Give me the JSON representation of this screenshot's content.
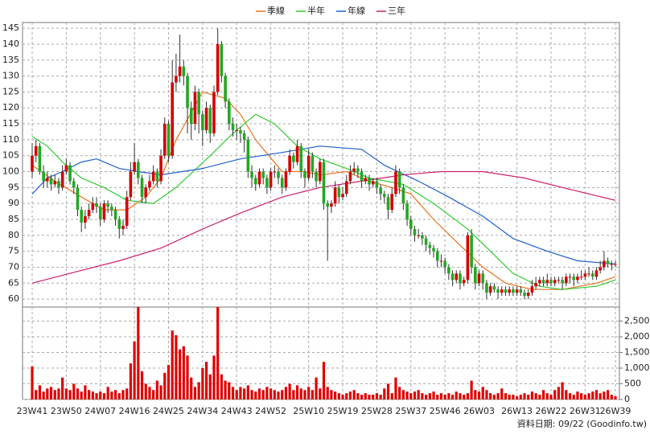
{
  "chart_data": {
    "type": "candlestick",
    "legend": "top",
    "grid": true,
    "footer": "資料日期: 09/22  (Goodinfo.tw)",
    "up_color": "#d40000",
    "down_color": "#22a822",
    "categories": [
      "23W41",
      null,
      null,
      null,
      null,
      null,
      null,
      null,
      null,
      "23W50",
      null,
      null,
      null,
      null,
      null,
      null,
      null,
      null,
      "24W07",
      null,
      null,
      null,
      null,
      null,
      null,
      null,
      null,
      "24W16",
      null,
      null,
      null,
      null,
      null,
      null,
      null,
      null,
      "24W25",
      null,
      null,
      null,
      null,
      null,
      null,
      null,
      null,
      "24W34",
      null,
      null,
      null,
      null,
      null,
      null,
      null,
      null,
      "24W43",
      null,
      null,
      null,
      null,
      null,
      null,
      null,
      null,
      "24W52",
      null,
      null,
      null,
      null,
      null,
      null,
      null,
      null,
      null,
      "25W10",
      null,
      null,
      null,
      null,
      null,
      null,
      null,
      null,
      "25W19",
      null,
      null,
      null,
      null,
      null,
      null,
      null,
      null,
      "25W28",
      null,
      null,
      null,
      null,
      null,
      null,
      null,
      null,
      "25W37",
      null,
      null,
      null,
      null,
      null,
      null,
      null,
      null,
      "25W46",
      null,
      null,
      null,
      null,
      null,
      null,
      null,
      null,
      "26W03",
      null,
      null,
      null,
      null,
      null,
      null,
      null,
      null,
      null,
      "26W13",
      null,
      null,
      null,
      null,
      null,
      null,
      null,
      null,
      "26W22",
      null,
      null,
      null,
      null,
      null,
      null,
      null,
      null,
      "26W31",
      null,
      null,
      null,
      null,
      null,
      null,
      null,
      "26W39"
    ],
    "ohlc": [
      [
        100,
        109,
        98,
        105
      ],
      [
        105,
        110,
        103,
        108
      ],
      [
        108,
        109,
        99,
        100
      ],
      [
        100,
        102,
        95,
        97
      ],
      [
        97,
        100,
        95,
        98
      ],
      [
        98,
        99,
        94,
        96
      ],
      [
        96,
        99,
        95,
        97
      ],
      [
        97,
        98,
        93,
        95
      ],
      [
        95,
        102,
        94,
        100
      ],
      [
        100,
        104,
        99,
        102
      ],
      [
        102,
        103,
        96,
        97
      ],
      [
        97,
        98,
        93,
        95
      ],
      [
        95,
        96,
        86,
        88
      ],
      [
        88,
        89,
        81,
        84
      ],
      [
        84,
        88,
        82,
        86
      ],
      [
        86,
        90,
        85,
        88
      ],
      [
        88,
        92,
        87,
        90
      ],
      [
        90,
        92,
        87,
        89
      ],
      [
        89,
        90,
        83,
        85
      ],
      [
        85,
        91,
        84,
        90
      ],
      [
        90,
        91,
        87,
        89
      ],
      [
        89,
        90,
        86,
        88
      ],
      [
        88,
        89,
        83,
        85
      ],
      [
        85,
        86,
        79,
        82
      ],
      [
        82,
        85,
        80,
        83
      ],
      [
        83,
        94,
        82,
        92
      ],
      [
        92,
        103,
        91,
        100
      ],
      [
        100,
        109,
        99,
        103
      ],
      [
        103,
        104,
        96,
        98
      ],
      [
        98,
        99,
        90,
        92
      ],
      [
        92,
        96,
        90,
        95
      ],
      [
        95,
        99,
        94,
        97
      ],
      [
        97,
        102,
        96,
        100
      ],
      [
        100,
        101,
        95,
        97
      ],
      [
        97,
        107,
        96,
        105
      ],
      [
        105,
        117,
        104,
        115
      ],
      [
        115,
        116,
        103,
        105
      ],
      [
        105,
        135,
        104,
        128
      ],
      [
        128,
        137,
        125,
        130
      ],
      [
        130,
        143,
        128,
        133
      ],
      [
        133,
        135,
        127,
        130
      ],
      [
        130,
        131,
        112,
        120
      ],
      [
        120,
        122,
        110,
        115
      ],
      [
        115,
        127,
        113,
        125
      ],
      [
        125,
        126,
        112,
        118
      ],
      [
        118,
        119,
        108,
        113
      ],
      [
        113,
        122,
        112,
        120
      ],
      [
        120,
        121,
        109,
        112
      ],
      [
        112,
        127,
        111,
        125
      ],
      [
        125,
        145,
        124,
        140
      ],
      [
        140,
        141,
        128,
        130
      ],
      [
        130,
        131,
        120,
        122
      ],
      [
        122,
        123,
        113,
        115
      ],
      [
        115,
        117,
        111,
        113
      ],
      [
        113,
        115,
        110,
        113
      ],
      [
        113,
        114,
        109,
        112
      ],
      [
        112,
        113,
        106,
        110
      ],
      [
        110,
        111,
        98,
        100
      ],
      [
        100,
        102,
        95,
        98
      ],
      [
        98,
        99,
        94,
        96
      ],
      [
        96,
        101,
        95,
        100
      ],
      [
        100,
        101,
        96,
        98
      ],
      [
        98,
        99,
        93,
        95
      ],
      [
        95,
        101,
        94,
        100
      ],
      [
        100,
        102,
        98,
        100
      ],
      [
        100,
        101,
        96,
        98
      ],
      [
        98,
        99,
        93,
        95
      ],
      [
        95,
        101,
        94,
        100
      ],
      [
        100,
        107,
        99,
        105
      ],
      [
        105,
        106,
        101,
        103
      ],
      [
        103,
        110,
        102,
        108
      ],
      [
        108,
        109,
        98,
        100
      ],
      [
        100,
        101,
        95,
        98
      ],
      [
        98,
        107,
        97,
        105
      ],
      [
        105,
        106,
        98,
        100
      ],
      [
        100,
        101,
        95,
        97
      ],
      [
        97,
        104,
        96,
        103
      ],
      [
        103,
        104,
        88,
        90
      ],
      [
        90,
        91,
        72,
        89
      ],
      [
        89,
        91,
        87,
        90
      ],
      [
        90,
        97,
        89,
        95
      ],
      [
        95,
        96,
        90,
        92
      ],
      [
        92,
        95,
        91,
        93
      ],
      [
        93,
        99,
        92,
        97
      ],
      [
        97,
        102,
        96,
        100
      ],
      [
        100,
        103,
        99,
        101
      ],
      [
        101,
        102,
        98,
        100
      ],
      [
        100,
        101,
        95,
        97
      ],
      [
        97,
        99,
        96,
        98
      ],
      [
        98,
        99,
        94,
        96
      ],
      [
        96,
        98,
        95,
        97
      ],
      [
        97,
        98,
        93,
        95
      ],
      [
        95,
        96,
        91,
        93
      ],
      [
        93,
        94,
        90,
        92
      ],
      [
        92,
        93,
        85,
        88
      ],
      [
        88,
        95,
        87,
        93
      ],
      [
        93,
        102,
        92,
        100
      ],
      [
        100,
        101,
        93,
        95
      ],
      [
        95,
        96,
        88,
        90
      ],
      [
        90,
        91,
        83,
        85
      ],
      [
        85,
        86,
        80,
        82
      ],
      [
        82,
        83,
        78,
        80
      ],
      [
        80,
        82,
        79,
        80
      ],
      [
        80,
        81,
        77,
        79
      ],
      [
        79,
        80,
        75,
        77
      ],
      [
        77,
        78,
        74,
        76
      ],
      [
        76,
        77,
        73,
        75
      ],
      [
        75,
        76,
        70,
        72
      ],
      [
        72,
        74,
        70,
        72
      ],
      [
        72,
        73,
        68,
        70
      ],
      [
        70,
        71,
        66,
        68
      ],
      [
        68,
        69,
        64,
        66
      ],
      [
        66,
        69,
        65,
        68
      ],
      [
        68,
        69,
        63,
        65
      ],
      [
        65,
        67,
        64,
        66
      ],
      [
        66,
        81,
        65,
        80
      ],
      [
        80,
        82,
        68,
        70
      ],
      [
        70,
        71,
        63,
        65
      ],
      [
        65,
        69,
        64,
        68
      ],
      [
        68,
        69,
        63,
        65
      ],
      [
        65,
        66,
        60,
        62
      ],
      [
        62,
        65,
        61,
        64
      ],
      [
        64,
        65,
        62,
        63
      ],
      [
        63,
        64,
        60,
        62
      ],
      [
        62,
        64,
        61,
        63
      ],
      [
        63,
        64,
        61,
        62
      ],
      [
        62,
        64,
        61,
        63
      ],
      [
        63,
        64,
        61,
        62
      ],
      [
        62,
        64,
        61,
        63
      ],
      [
        63,
        64,
        61,
        62
      ],
      [
        62,
        63,
        60,
        61
      ],
      [
        61,
        63,
        60,
        62
      ],
      [
        62,
        66,
        61,
        64
      ],
      [
        64,
        67,
        63,
        65
      ],
      [
        65,
        67,
        64,
        66
      ],
      [
        66,
        67,
        64,
        65
      ],
      [
        65,
        68,
        64,
        66
      ],
      [
        66,
        67,
        64,
        65
      ],
      [
        65,
        67,
        64,
        66
      ],
      [
        66,
        67,
        65,
        66
      ],
      [
        66,
        67,
        63,
        65
      ],
      [
        65,
        68,
        64,
        67
      ],
      [
        67,
        68,
        65,
        67
      ],
      [
        67,
        68,
        64,
        66
      ],
      [
        66,
        68,
        65,
        67
      ],
      [
        67,
        69,
        66,
        67
      ],
      [
        67,
        69,
        66,
        68
      ],
      [
        68,
        70,
        67,
        68
      ],
      [
        68,
        69,
        66,
        67
      ],
      [
        67,
        70,
        66,
        69
      ],
      [
        69,
        72,
        68,
        70
      ],
      [
        70,
        75,
        69,
        72
      ],
      [
        72,
        73,
        70,
        71
      ],
      [
        71,
        72,
        69,
        71
      ],
      [
        71,
        72,
        70,
        71
      ]
    ],
    "ylim": [
      57.5,
      146.8
    ],
    "yticks": [
      60,
      65,
      70,
      75,
      80,
      85,
      90,
      95,
      100,
      105,
      110,
      115,
      120,
      125,
      130,
      135,
      140,
      145
    ],
    "series": [
      {
        "name": "季線",
        "color": "#e8731c",
        "x": [
          0,
          6,
          13,
          19,
          25,
          30,
          34,
          38,
          45,
          51,
          55,
          59,
          66,
          72,
          76,
          83,
          89,
          95,
          100,
          106,
          112,
          119,
          125,
          132,
          140,
          149,
          154
        ],
        "values": [
          102,
          97,
          92,
          88,
          88,
          92,
          98,
          110,
          125,
          123,
          118,
          110,
          100,
          100,
          99,
          100,
          97,
          95,
          93,
          85,
          78,
          70,
          65,
          63,
          63,
          65,
          67
        ]
      },
      {
        "name": "半年",
        "color": "#2ecc2e",
        "x": [
          0,
          4,
          8,
          13,
          19,
          25,
          32,
          38,
          47,
          53,
          59,
          64,
          70,
          76,
          83,
          89,
          98,
          106,
          115,
          121,
          127,
          134,
          140,
          149,
          154
        ],
        "values": [
          111,
          108,
          103,
          98,
          95,
          91,
          90,
          95,
          105,
          112,
          118,
          115,
          108,
          104,
          101,
          98,
          96,
          90,
          82,
          75,
          68,
          64,
          63,
          64,
          66
        ]
      },
      {
        "name": "年線",
        "color": "#1f5fcf",
        "x": [
          0,
          4,
          8,
          13,
          17,
          23,
          28,
          34,
          45,
          55,
          66,
          76,
          87,
          93,
          102,
          110,
          119,
          127,
          136,
          144,
          154
        ],
        "values": [
          93,
          98,
          100,
          103,
          104,
          101,
          100,
          99,
          101,
          104,
          106,
          108,
          107,
          102,
          97,
          92,
          86,
          79,
          75,
          72,
          71
        ]
      },
      {
        "name": "三年",
        "color": "#cc1f6e",
        "x": [
          0,
          13,
          23,
          34,
          45,
          55,
          66,
          76,
          87,
          98,
          108,
          119,
          130,
          140,
          154
        ],
        "values": [
          65,
          69,
          72,
          76,
          82,
          87,
          92,
          95,
          97,
          99,
          100,
          100,
          98,
          95,
          91
        ]
      }
    ],
    "volume": {
      "color": "#e00000",
      "values": [
        1050,
        300,
        450,
        250,
        350,
        400,
        300,
        350,
        700,
        350,
        300,
        500,
        350,
        250,
        450,
        300,
        250,
        200,
        250,
        200,
        400,
        250,
        300,
        200,
        300,
        350,
        1150,
        1850,
        2950,
        900,
        500,
        400,
        300,
        600,
        450,
        850,
        1100,
        2200,
        2050,
        1600,
        1700,
        1400,
        700,
        400,
        550,
        1000,
        1200,
        800,
        1400,
        2950,
        800,
        600,
        550,
        400,
        300,
        400,
        350,
        450,
        300,
        250,
        350,
        300,
        400,
        350,
        300,
        250,
        300,
        400,
        500,
        300,
        450,
        350,
        300,
        400,
        300,
        700,
        350,
        1200,
        400,
        300,
        250,
        200,
        150,
        200,
        250,
        300,
        200,
        150,
        200,
        150,
        150,
        200,
        150,
        350,
        500,
        200,
        700,
        400,
        300,
        250,
        200,
        250,
        300,
        200,
        150,
        200,
        250,
        150,
        200,
        150,
        200,
        150,
        250,
        200,
        150,
        200,
        600,
        300,
        250,
        400,
        300,
        200,
        150,
        200,
        350,
        200,
        150,
        150,
        100,
        150,
        200,
        150,
        250,
        200,
        150,
        300,
        200,
        150,
        300,
        400,
        550,
        300,
        200,
        150,
        250,
        200,
        150,
        200,
        250,
        300,
        200,
        250,
        300,
        150,
        100
      ],
      "ylim": [
        0,
        2950
      ],
      "yticks": [
        0,
        500,
        {
          "value": 1000,
          "label": "1,000"
        },
        {
          "value": 1500,
          "label": "1,500"
        },
        {
          "value": 2000,
          "label": "2,000"
        },
        {
          "value": 2500,
          "label": "2,500"
        }
      ]
    }
  }
}
